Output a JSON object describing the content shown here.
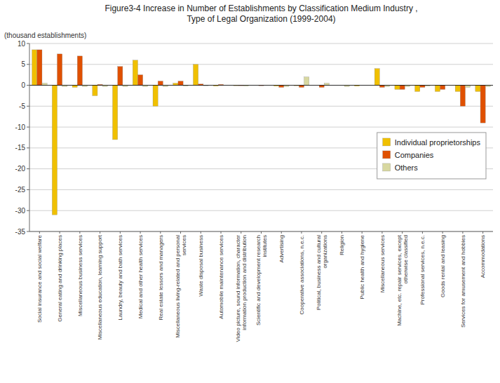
{
  "chart_data": {
    "type": "bar",
    "title": "Figure3-4  Increase in Number of Establishments by Classification Medium Industry ,\n Type of Legal Organization (1999-2004)",
    "y_label": "(thousand establishments)",
    "categories": [
      "Social insurance and social welfare",
      "General eating and drinking places",
      "Miscellaneous business services",
      "Miscellaneous education, learning support",
      "Laundry, beauty and bath services",
      "Medical and other health services",
      "Real estate lessors and managers",
      "Miscellaneous living-related and personal services",
      "Waste disposal business",
      "Automobile maintenance services",
      "Video picture, sound information, character information production and distribution",
      "Scientific and development research institutes",
      "Advertising",
      "Cooperative associations, n.e.c.",
      "Political, business and cultural organizations",
      "Religion",
      "Public health and hygiene",
      "Miscellaneous services",
      "Machine, etc. repair services, except otherwise classified",
      "Professional services, n.e.c.",
      "Goods rental and leasing",
      "Services for amusement and hobbies",
      "Accommodations"
    ],
    "series": [
      {
        "name": "Individual proprietorships",
        "color": "#F0C000",
        "values": [
          8.5,
          -31.0,
          -0.5,
          -2.5,
          -13.0,
          6.0,
          -5.0,
          0.5,
          5.0,
          -0.2,
          -0.1,
          0.0,
          -0.2,
          -0.1,
          0.0,
          0.0,
          -0.2,
          4.0,
          -1.0,
          -1.5,
          -1.5,
          -1.5,
          -1.5
        ]
      },
      {
        "name": "Companies",
        "color": "#E05000",
        "values": [
          8.5,
          7.5,
          7.0,
          0.2,
          4.5,
          2.5,
          1.0,
          1.0,
          0.3,
          0.2,
          -0.1,
          -0.1,
          -0.5,
          -0.5,
          -0.5,
          0.0,
          0.0,
          -0.5,
          -1.0,
          -0.5,
          -1.0,
          -5.0,
          -9.0
        ]
      },
      {
        "name": "Others",
        "color": "#D8D8A0",
        "values": [
          0.5,
          -0.3,
          -0.3,
          -0.3,
          -0.3,
          -0.3,
          -0.3,
          -0.2,
          -0.1,
          0.0,
          -0.2,
          0.0,
          -0.3,
          2.0,
          0.5,
          -0.3,
          0.0,
          -0.3,
          -0.3,
          -0.2,
          0.0,
          -0.5,
          -0.3
        ]
      }
    ],
    "ylim": [
      -35,
      10
    ],
    "yticks": [
      -35,
      -30,
      -25,
      -20,
      -15,
      -10,
      -5,
      0,
      5,
      10
    ],
    "grid": true,
    "legend": "right"
  }
}
